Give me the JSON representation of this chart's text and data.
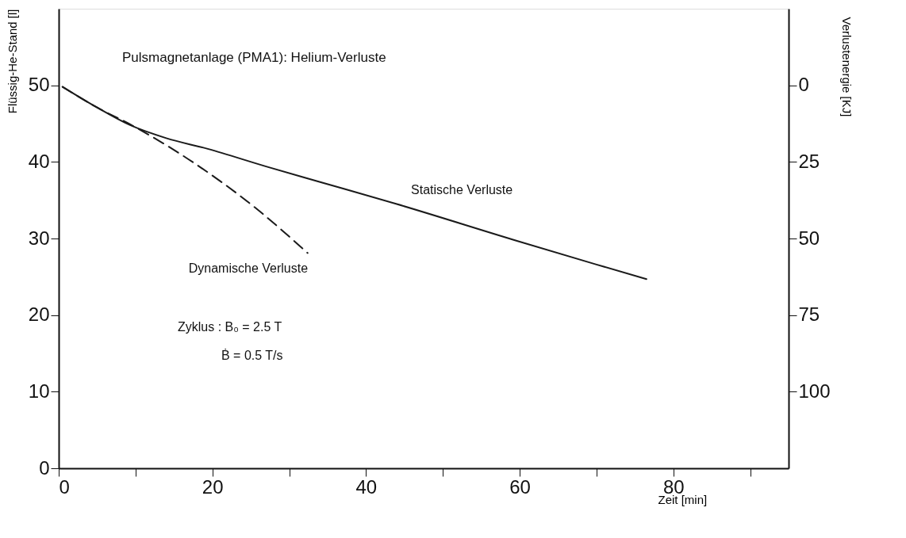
{
  "chart_data": {
    "type": "line",
    "title": "Pulsmagnetanlage (PMA1): Helium-Verluste",
    "xlabel": "Zeit [min]",
    "ylabel": "Flüssig-He-Stand [l]",
    "y2label": "Verlustenergie [KJ]",
    "xlim": [
      0,
      95
    ],
    "ylim": [
      0,
      60
    ],
    "y2lim": [
      125,
      -25
    ],
    "xticks": [
      0,
      {
        "value": 10,
        "label": null
      },
      20,
      {
        "value": 30,
        "label": null
      },
      40,
      {
        "value": 50,
        "label": null
      },
      60,
      {
        "value": 70,
        "label": null
      },
      80,
      {
        "value": 90,
        "label": null
      }
    ],
    "yticks": [
      0,
      10,
      20,
      30,
      40,
      50
    ],
    "y2ticks": [
      0,
      25,
      50,
      75,
      100
    ],
    "grid": false,
    "series": [
      {
        "color": "#1a1a1a",
        "line_style": "solid",
        "x": [
          0.5,
          5,
          9.3,
          14,
          19.4,
          27,
          34.3,
          44,
          59.3,
          70,
          76.5
        ],
        "values": [
          49.8,
          47.1,
          44.8,
          43.1,
          41.7,
          39.4,
          37.3,
          34.5,
          29.8,
          26.6,
          24.7
        ]
      },
      {
        "color": "#1a1a1a",
        "line_style": "dashed",
        "x": [
          0.5,
          5,
          9.3,
          16.8,
          25.6,
          32.4
        ],
        "values": [
          49.8,
          47.1,
          44.9,
          40.4,
          34,
          28.1
        ]
      }
    ],
    "annotations": [
      {
        "text": "Statische Verluste",
        "x": 44,
        "y": 34.5
      },
      {
        "text": "Dynamische Verluste",
        "x": 32.4,
        "y": 28.1
      },
      "Zyklus :  B₀  = 2.5 T",
      "Ḃ  = 0.5 T/s"
    ]
  }
}
